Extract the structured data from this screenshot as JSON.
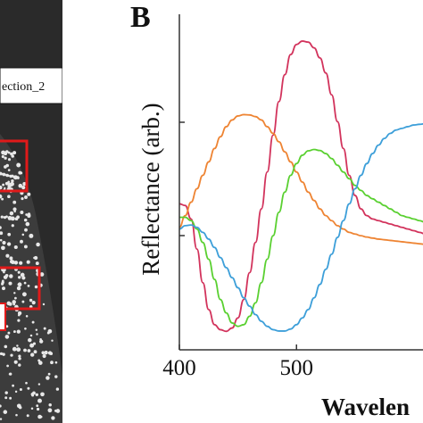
{
  "panel_a": {
    "section_label": "ection_2"
  },
  "panel_b": {
    "letter": "B"
  },
  "colors": {
    "red": "#d2335c",
    "orange": "#ee8433",
    "green": "#5ad031",
    "blue": "#3d9fd9",
    "axis": "#333333",
    "box": "#e01a1a"
  },
  "chart_data": {
    "type": "line",
    "title": "",
    "xlabel": "Wavelen",
    "ylabel": "Reflectance (arb.)",
    "xlim": [
      400,
      610
    ],
    "ylim": [
      0,
      1
    ],
    "x_ticks": [
      400,
      500
    ],
    "grid": false,
    "series": [
      {
        "color": "red",
        "x": [
          400,
          405,
          410,
          415,
          420,
          425,
          430,
          435,
          440,
          445,
          450,
          455,
          460,
          465,
          470,
          475,
          480,
          485,
          490,
          495,
          500,
          505,
          510,
          515,
          520,
          525,
          530,
          535,
          540,
          545,
          550,
          555,
          560,
          565,
          570,
          575,
          580,
          585,
          590,
          595,
          600,
          605,
          610
        ],
        "y": [
          0.435,
          0.43,
          0.39,
          0.3,
          0.2,
          0.12,
          0.075,
          0.06,
          0.055,
          0.065,
          0.095,
          0.15,
          0.23,
          0.32,
          0.42,
          0.53,
          0.64,
          0.74,
          0.82,
          0.88,
          0.91,
          0.92,
          0.917,
          0.9,
          0.87,
          0.825,
          0.76,
          0.68,
          0.6,
          0.52,
          0.46,
          0.42,
          0.4,
          0.39,
          0.385,
          0.38,
          0.375,
          0.37,
          0.365,
          0.36,
          0.355,
          0.35,
          0.345
        ]
      },
      {
        "color": "orange",
        "x": [
          400,
          405,
          410,
          415,
          420,
          425,
          430,
          435,
          440,
          445,
          450,
          455,
          460,
          465,
          470,
          475,
          480,
          485,
          490,
          495,
          500,
          505,
          510,
          515,
          520,
          525,
          530,
          535,
          540,
          545,
          550,
          555,
          560,
          565,
          570,
          575,
          580,
          585,
          590,
          595,
          600,
          605,
          610
        ],
        "y": [
          0.365,
          0.4,
          0.44,
          0.48,
          0.52,
          0.56,
          0.6,
          0.635,
          0.665,
          0.685,
          0.697,
          0.701,
          0.7,
          0.695,
          0.685,
          0.665,
          0.645,
          0.62,
          0.59,
          0.56,
          0.53,
          0.5,
          0.47,
          0.445,
          0.42,
          0.4,
          0.385,
          0.37,
          0.36,
          0.35,
          0.345,
          0.34,
          0.336,
          0.333,
          0.33,
          0.328,
          0.326,
          0.324,
          0.322,
          0.32,
          0.318,
          0.316,
          0.314
        ]
      },
      {
        "color": "green",
        "x": [
          400,
          405,
          410,
          415,
          420,
          425,
          430,
          435,
          440,
          445,
          450,
          455,
          460,
          465,
          470,
          475,
          480,
          485,
          490,
          495,
          500,
          505,
          510,
          515,
          520,
          525,
          530,
          535,
          540,
          545,
          550,
          555,
          560,
          565,
          570,
          575,
          580,
          585,
          590,
          595,
          600,
          605,
          610
        ],
        "y": [
          0.395,
          0.395,
          0.385,
          0.36,
          0.32,
          0.27,
          0.21,
          0.15,
          0.11,
          0.08,
          0.07,
          0.075,
          0.1,
          0.14,
          0.2,
          0.27,
          0.34,
          0.41,
          0.47,
          0.52,
          0.555,
          0.58,
          0.593,
          0.597,
          0.594,
          0.585,
          0.57,
          0.55,
          0.53,
          0.51,
          0.49,
          0.475,
          0.46,
          0.45,
          0.44,
          0.43,
          0.42,
          0.41,
          0.4,
          0.395,
          0.39,
          0.385,
          0.38
        ]
      },
      {
        "color": "blue",
        "x": [
          400,
          405,
          410,
          415,
          420,
          425,
          430,
          435,
          440,
          445,
          450,
          455,
          460,
          465,
          470,
          475,
          480,
          485,
          490,
          495,
          500,
          505,
          510,
          515,
          520,
          525,
          530,
          535,
          540,
          545,
          550,
          555,
          560,
          565,
          570,
          575,
          580,
          585,
          590,
          595,
          600,
          605,
          610
        ],
        "y": [
          0.36,
          0.37,
          0.372,
          0.365,
          0.35,
          0.33,
          0.305,
          0.275,
          0.245,
          0.215,
          0.185,
          0.155,
          0.13,
          0.105,
          0.085,
          0.07,
          0.06,
          0.056,
          0.056,
          0.062,
          0.075,
          0.095,
          0.12,
          0.155,
          0.195,
          0.24,
          0.285,
          0.335,
          0.385,
          0.435,
          0.48,
          0.52,
          0.555,
          0.585,
          0.61,
          0.63,
          0.645,
          0.655,
          0.66,
          0.665,
          0.67,
          0.672,
          0.674
        ]
      }
    ]
  }
}
